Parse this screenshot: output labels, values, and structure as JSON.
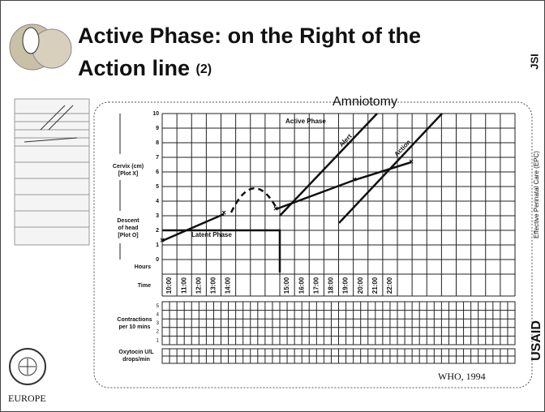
{
  "header": {
    "title": "Active Phase: on the Right of the Action line",
    "title_suffix": "(2)",
    "side_label": "JSI"
  },
  "partograph": {
    "annotation": "Amniotomy",
    "cervix_label": [
      "Cervix (cm)",
      "[Plot X]"
    ],
    "descent_label": [
      "Descent",
      "of head",
      "[Plot O]"
    ],
    "hours_label": "Hours",
    "time_label": "Time",
    "contractions_label": [
      "Contractions",
      "per 10 mins"
    ],
    "oxytocin_label": [
      "Oxytocin U/L",
      "drops/min"
    ],
    "scale": [
      10,
      9,
      8,
      7,
      6,
      5,
      4,
      3,
      2,
      1,
      0
    ],
    "contraction_scale": [
      5,
      4,
      3,
      2,
      1
    ],
    "times_early": [
      "10:00",
      "11:00",
      "12:00",
      "13:00",
      "14:00"
    ],
    "times_late": [
      "15:00",
      "16:00",
      "17:00",
      "18:00",
      "19:00",
      "20:00",
      "21:00",
      "22:00"
    ],
    "active_phase": "Active Phase",
    "latent_phase": "Latent Phase",
    "alert": "Alert",
    "action": "Action"
  },
  "footer": {
    "region": "EUROPE",
    "source": "WHO, 1994",
    "sponsor": "USAID",
    "program": "Effective Perinatal Care (EPC)"
  }
}
